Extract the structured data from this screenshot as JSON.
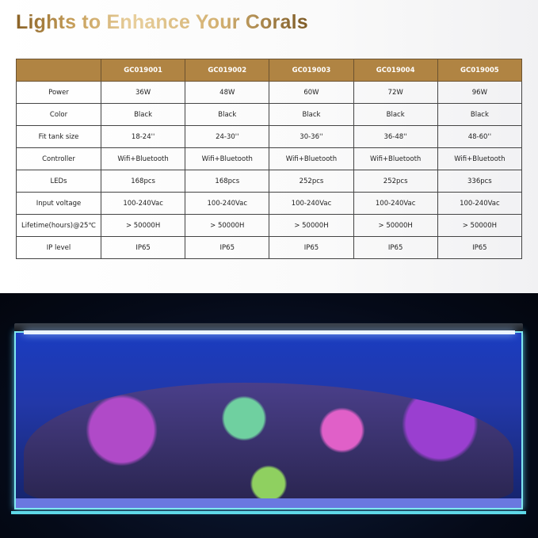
{
  "title": "Lights to Enhance Your Corals",
  "table": {
    "headers": [
      "",
      "GC019001",
      "GC019002",
      "GC019003",
      "GC019004",
      "GC019005"
    ],
    "rows": [
      [
        "Power",
        "36W",
        "48W",
        "60W",
        "72W",
        "96W"
      ],
      [
        "Color",
        "Black",
        "Black",
        "Black",
        "Black",
        "Black"
      ],
      [
        "Fit tank size",
        "18-24''",
        "24-30''",
        "30-36''",
        "36-48''",
        "48-60''"
      ],
      [
        "Controller",
        "Wifi+Bluetooth",
        "Wifi+Bluetooth",
        "Wifi+Bluetooth",
        "Wifi+Bluetooth",
        "Wifi+Bluetooth"
      ],
      [
        "LEDs",
        "168pcs",
        "168pcs",
        "252pcs",
        "252pcs",
        "336pcs"
      ],
      [
        "Input voltage",
        "100-240Vac",
        "100-240Vac",
        "100-240Vac",
        "100-240Vac",
        "100-240Vac"
      ],
      [
        "Lifetime(hours)@25℃",
        "> 50000H",
        "> 50000H",
        "> 50000H",
        "> 50000H",
        "> 50000H"
      ],
      [
        "IP level",
        "IP65",
        "IP65",
        "IP65",
        "IP65",
        "IP65"
      ]
    ]
  },
  "colors": {
    "header": "#b08443",
    "title_gold": "#c79f5a"
  }
}
